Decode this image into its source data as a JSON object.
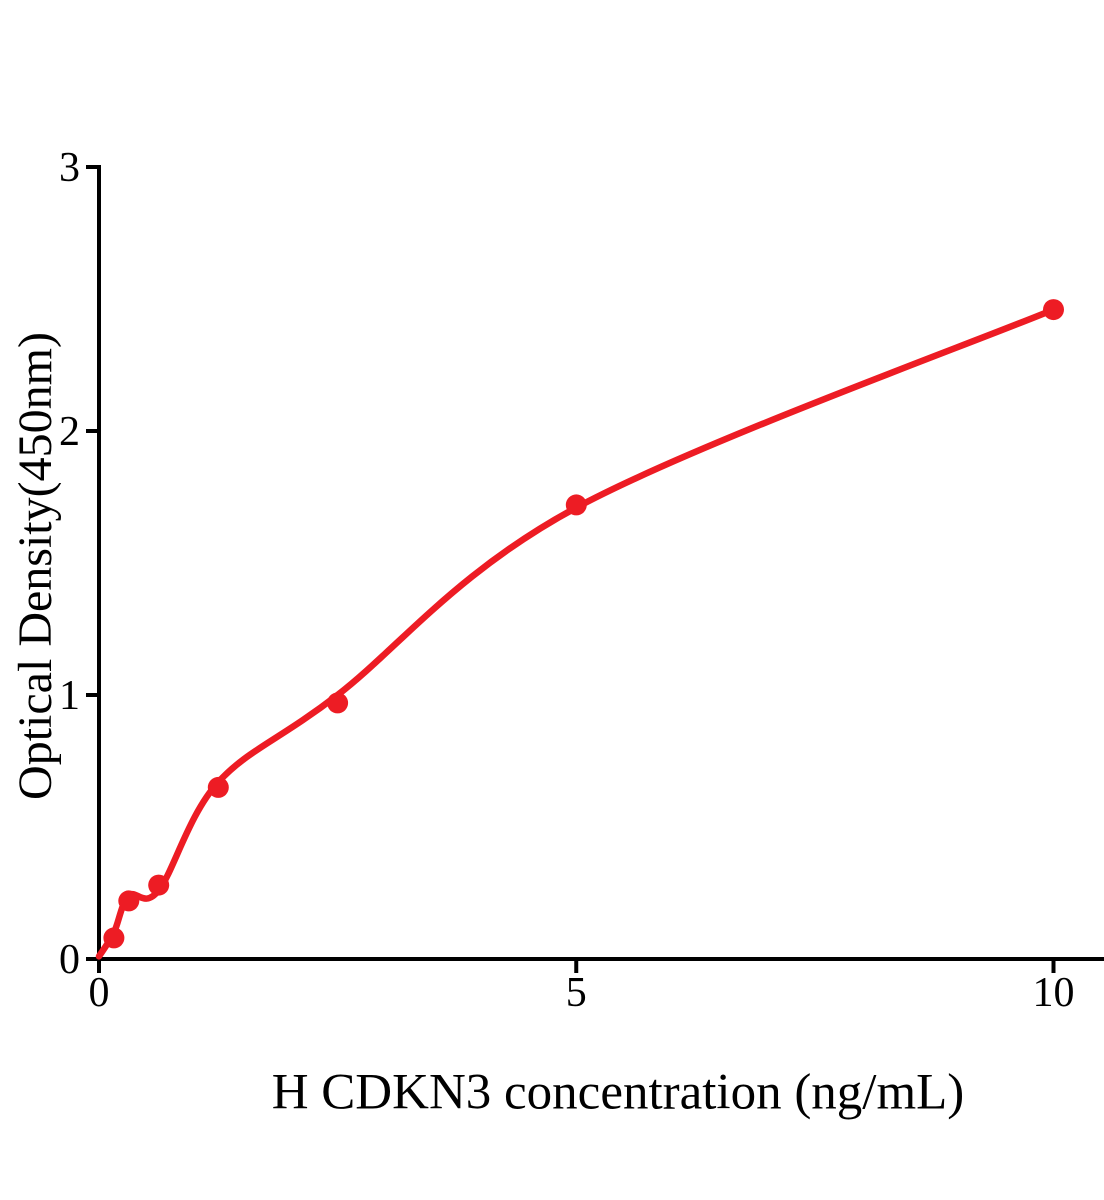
{
  "chart_data": {
    "type": "scatter",
    "title": "",
    "xlabel": "H CDKN3 concentration (ng/mL)",
    "ylabel": "Optical Density(450nm)",
    "x": [
      0.156,
      0.3125,
      0.625,
      1.25,
      2.5,
      5,
      10
    ],
    "y": [
      0.08,
      0.22,
      0.28,
      0.65,
      0.97,
      1.72,
      2.46
    ],
    "fit_curve": {
      "x": [
        0,
        0.156,
        0.3125,
        0.625,
        1.25,
        2.5,
        5,
        10
      ],
      "y": [
        0.01,
        0.1,
        0.24,
        0.26,
        0.67,
        1.0,
        1.71,
        2.46
      ]
    },
    "xticks": [
      0,
      5,
      10
    ],
    "yticks": [
      0,
      1,
      2,
      3
    ],
    "xlim": [
      0,
      10.5
    ],
    "ylim": [
      0,
      3
    ],
    "grid": false,
    "legend_position": "none",
    "colors": {
      "points": "#ED1C24",
      "curve": "#ED1C24",
      "axis": "#000000",
      "text": "#000000",
      "background": "#FFFFFF"
    }
  }
}
